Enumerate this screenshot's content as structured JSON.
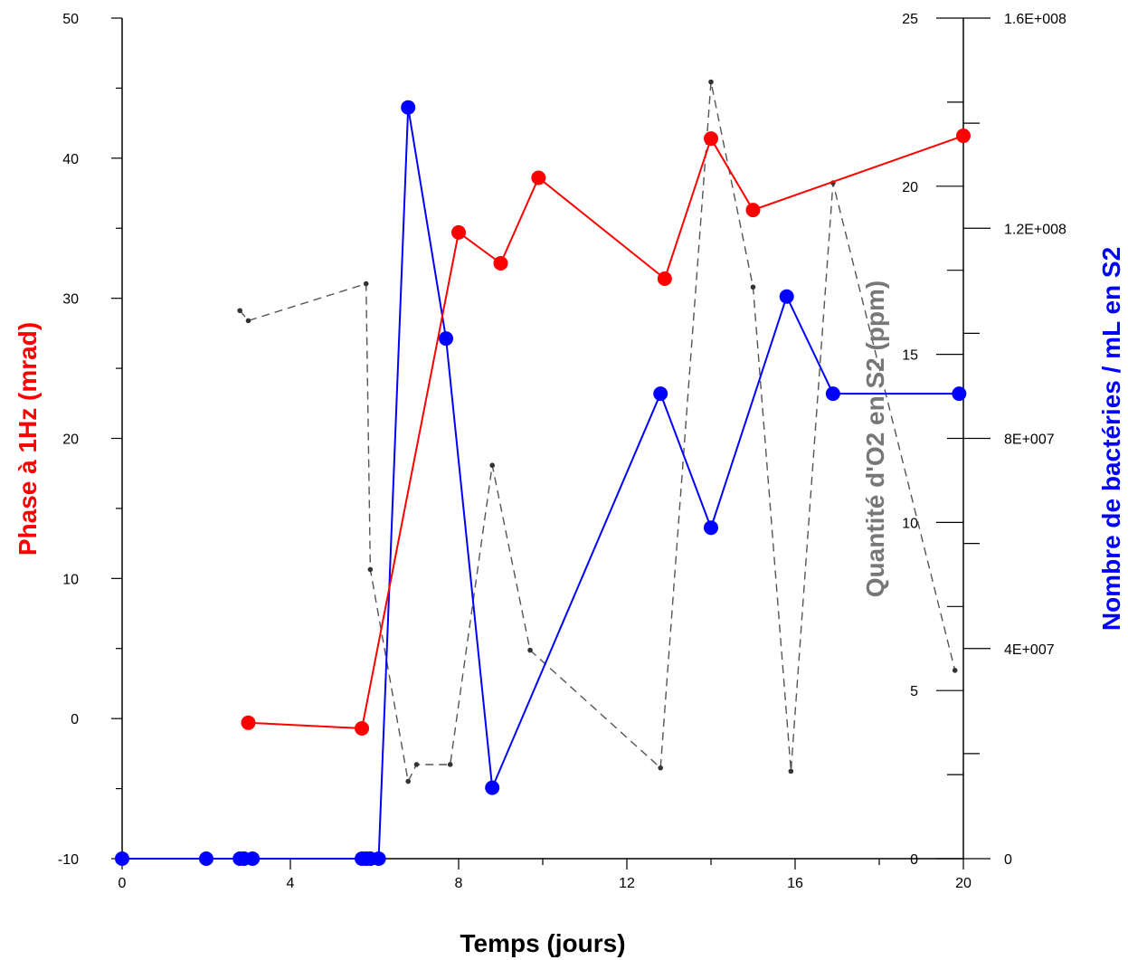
{
  "chart_data": {
    "type": "line",
    "xlabel": "Temps (jours)",
    "ylabel_left": "Phase à 1Hz (mrad)",
    "ylabel_right_inner": "Quantité d'O2 en S2 (ppm)",
    "ylabel_right_outer": "Nombre de bactéries / mL en S2",
    "xlim": [
      0,
      20
    ],
    "ylim_left": [
      -10,
      50
    ],
    "ylim_right_inner": [
      0,
      25
    ],
    "ylim_right_outer": [
      0,
      160000000
    ],
    "x_ticks": [
      "0",
      "4",
      "8",
      "12",
      "16",
      "20"
    ],
    "y_left_ticks": [
      "-10",
      "0",
      "10",
      "20",
      "30",
      "40",
      "50"
    ],
    "y_right_inner_ticks": [
      "0",
      "5",
      "10",
      "15",
      "20",
      "25"
    ],
    "y_right_outer_ticks": [
      "0",
      "4E+007",
      "8E+007",
      "1.2E+008",
      "1.6E+008"
    ],
    "colors": {
      "phase": "#ff0000",
      "oxygen": "#555555",
      "bacteria": "#0000ff"
    },
    "series": [
      {
        "axis": "left",
        "style": "solid-markers",
        "color": "#ff0000",
        "points": [
          [
            3.0,
            -0.3
          ],
          [
            5.7,
            -0.7
          ],
          [
            8.0,
            34.7
          ],
          [
            9.0,
            32.5
          ],
          [
            9.9,
            38.6
          ],
          [
            12.9,
            31.4
          ],
          [
            14.0,
            41.4
          ],
          [
            15.0,
            36.3
          ],
          [
            20.0,
            41.6
          ]
        ]
      },
      {
        "axis": "right_inner",
        "style": "dashed-small",
        "color": "#555555",
        "points": [
          [
            2.8,
            16.3
          ],
          [
            3.0,
            16.0
          ],
          [
            5.8,
            17.1
          ],
          [
            5.9,
            8.6
          ],
          [
            6.8,
            2.3
          ],
          [
            7.0,
            2.8
          ],
          [
            7.8,
            2.8
          ],
          [
            8.8,
            11.7
          ],
          [
            9.7,
            6.2
          ],
          [
            12.8,
            2.7
          ],
          [
            14.0,
            23.1
          ],
          [
            15.0,
            17.0
          ],
          [
            15.9,
            2.6
          ],
          [
            16.9,
            20.1
          ],
          [
            19.8,
            5.6
          ]
        ]
      },
      {
        "axis": "right_outer",
        "style": "solid-markers",
        "color": "#0000ff",
        "points": [
          [
            0.0,
            0
          ],
          [
            2.0,
            0
          ],
          [
            2.8,
            0
          ],
          [
            2.9,
            0
          ],
          [
            3.1,
            0
          ],
          [
            5.7,
            0
          ],
          [
            5.8,
            0
          ],
          [
            5.9,
            0
          ],
          [
            6.1,
            0
          ],
          [
            6.8,
            143000000
          ],
          [
            7.7,
            99000000
          ],
          [
            8.8,
            13500000
          ],
          [
            12.8,
            88500000
          ],
          [
            14.0,
            63000000
          ],
          [
            15.8,
            107000000
          ],
          [
            16.9,
            88500000
          ],
          [
            19.9,
            88500000
          ]
        ]
      }
    ]
  }
}
